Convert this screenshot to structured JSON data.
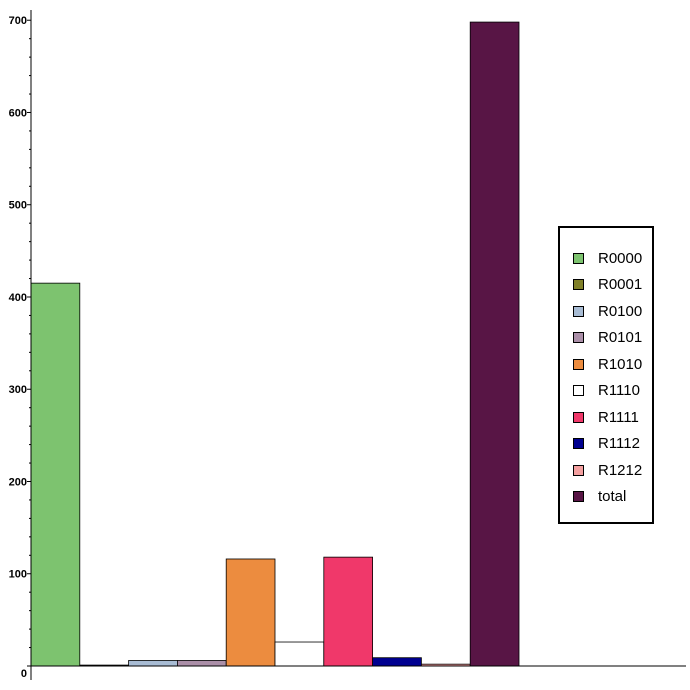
{
  "chart_data": {
    "type": "bar",
    "title": "",
    "xlabel": "",
    "ylabel": "",
    "ylim": [
      0,
      710
    ],
    "yticks": [
      0,
      100,
      200,
      300,
      400,
      500,
      600,
      700
    ],
    "grid": false,
    "legend_position": "right",
    "series": [
      {
        "name": "R0000",
        "value": 415,
        "color": "#7dc36f"
      },
      {
        "name": "R0001",
        "value": 1,
        "color": "#808028"
      },
      {
        "name": "R0100",
        "value": 6,
        "color": "#a8bcd4"
      },
      {
        "name": "R0101",
        "value": 6,
        "color": "#ab8fa8"
      },
      {
        "name": "R1010",
        "value": 116,
        "color": "#ec8c3f"
      },
      {
        "name": "R1110",
        "value": 26,
        "color": "#ffffff"
      },
      {
        "name": "R1111",
        "value": 118,
        "color": "#f0386a"
      },
      {
        "name": "R1112",
        "value": 9,
        "color": "#000090"
      },
      {
        "name": "R1212",
        "value": 2,
        "color": "#f4a0a0"
      },
      {
        "name": "total",
        "value": 698,
        "color": "#581545"
      }
    ]
  }
}
